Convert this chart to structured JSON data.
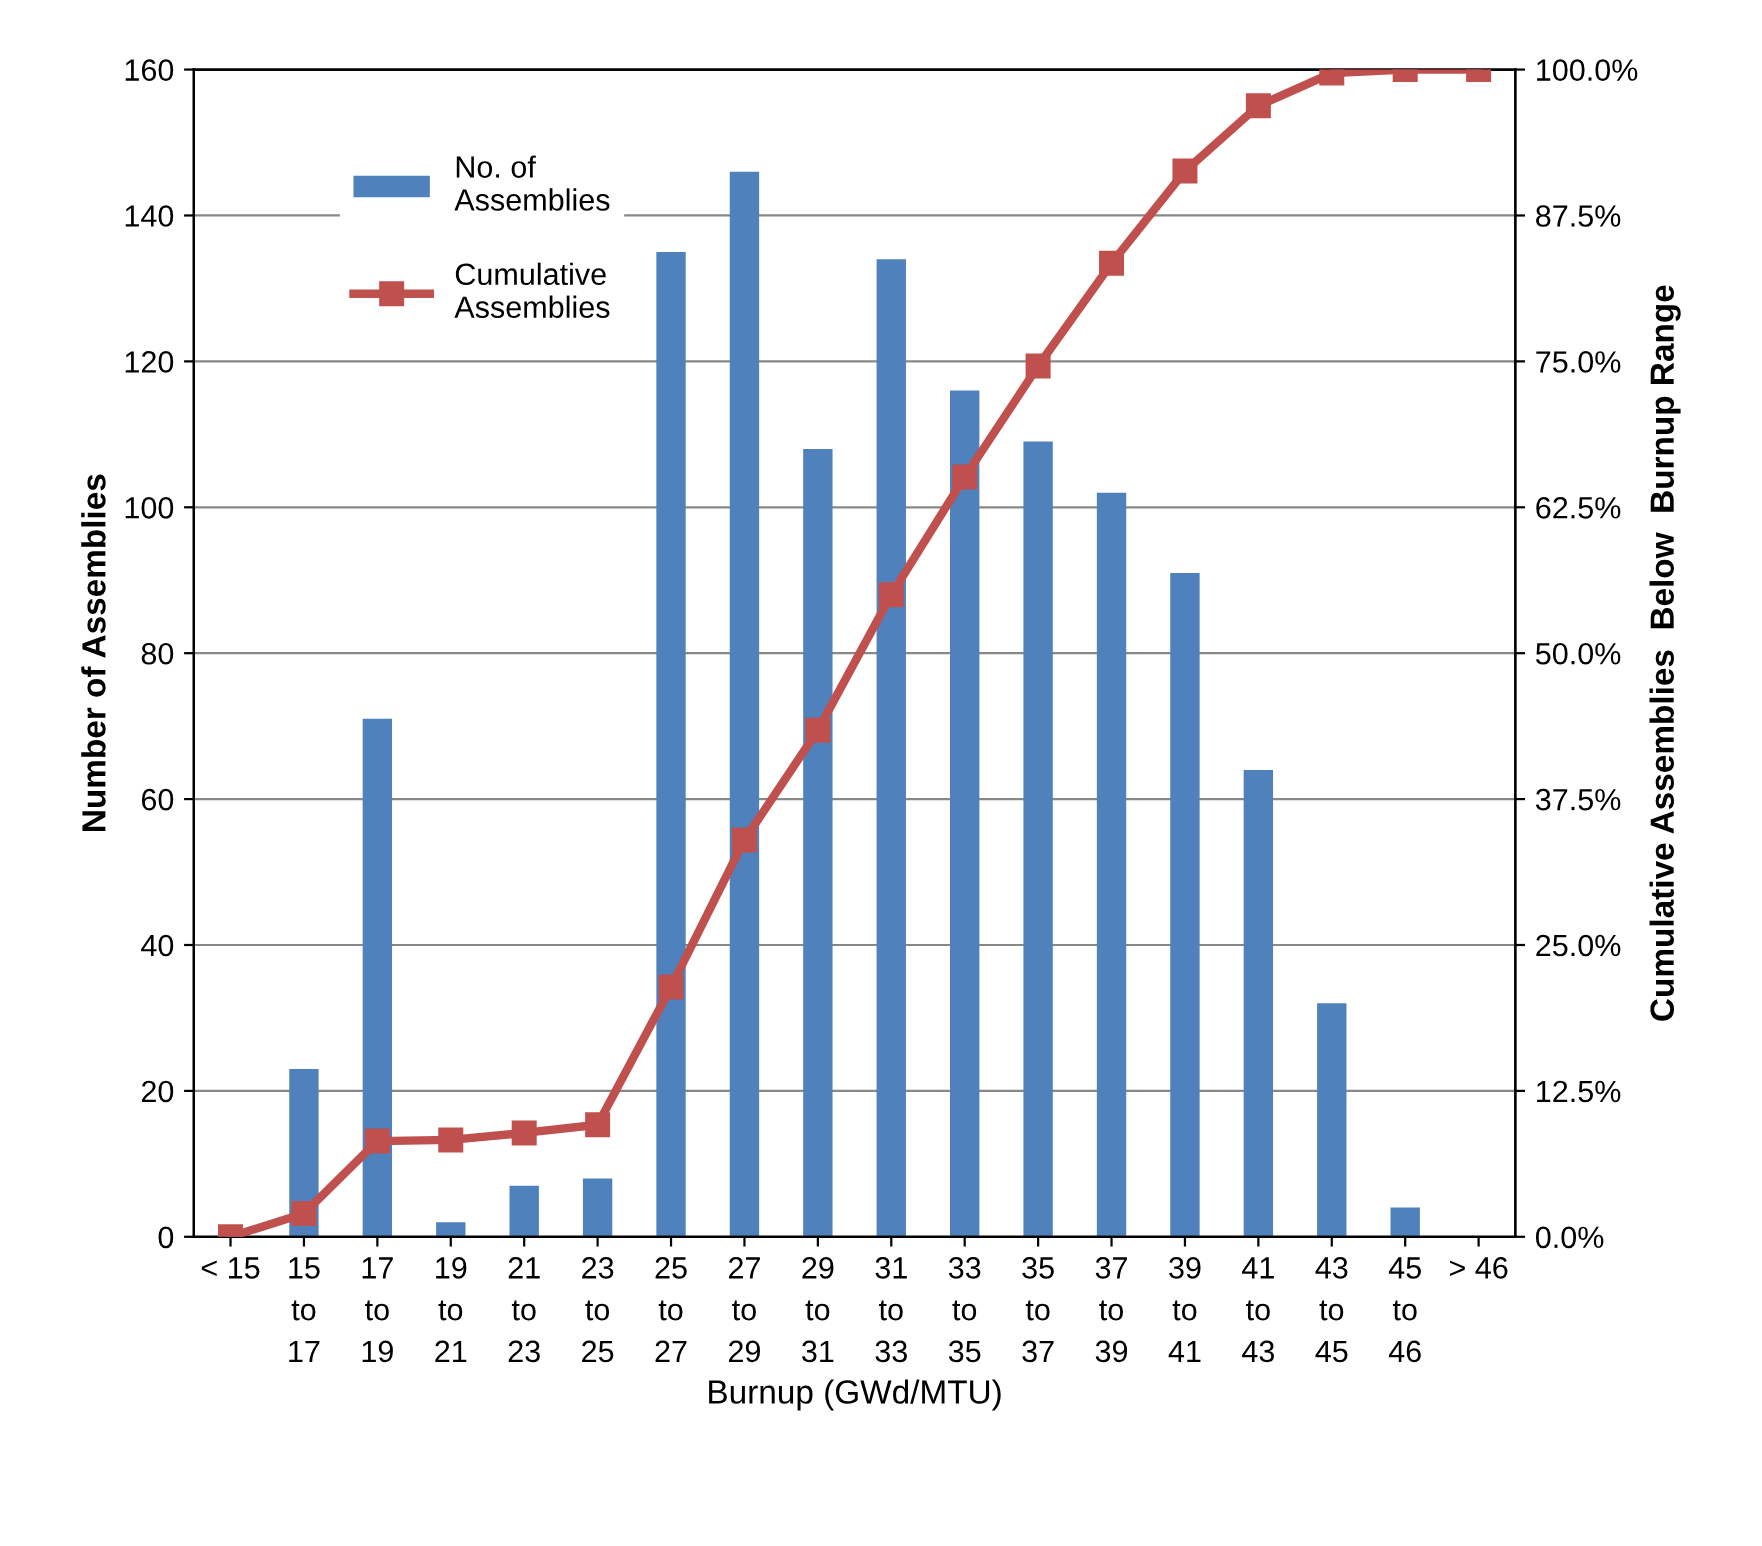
{
  "chart_data": {
    "type": "bar",
    "xlabel": "Burnup (GWd/MTU)",
    "ylabel": "Number of Assemblies",
    "y2label": "Cumulative Assemblies  Below  Burnup Range",
    "categories": [
      "< 15",
      "15\nto\n17",
      "17\nto\n19",
      "19\nto\n21",
      "21\nto\n23",
      "23\nto\n25",
      "25\nto\n27",
      "27\nto\n29",
      "29\nto\n31",
      "31\nto\n33",
      "33\nto\n35",
      "35\nto\n37",
      "37\nto\n39",
      "39\nto\n41",
      "41\nto\n43",
      "43\nto\n45",
      "45\nto\n46",
      "> 46"
    ],
    "series": [
      {
        "name": "No. of\nAssemblies",
        "color": "#4f81bd",
        "values": [
          0,
          23,
          71,
          2,
          7,
          8,
          135,
          146,
          108,
          134,
          116,
          109,
          102,
          91,
          64,
          32,
          4,
          0
        ]
      },
      {
        "name": "Cumulative\nAssemblies",
        "type": "line",
        "axis": "y2",
        "color": "#c0504d",
        "marker": "square",
        "line_style": "solid",
        "values": [
          0,
          2.0,
          8.2,
          8.3,
          8.9,
          9.6,
          21.4,
          34.0,
          43.4,
          55.0,
          65.1,
          74.6,
          83.4,
          91.3,
          96.9,
          99.7,
          100,
          100
        ]
      }
    ],
    "ylim": [
      0,
      160
    ],
    "yticks": [
      0,
      20,
      40,
      60,
      80,
      100,
      120,
      140,
      160
    ],
    "y2lim": [
      0,
      100
    ],
    "y2ticks": [
      {
        "value": 0,
        "label": "0.0%"
      },
      {
        "value": 12.5,
        "label": "12.5%"
      },
      {
        "value": 25,
        "label": "25.0%"
      },
      {
        "value": 37.5,
        "label": "37.5%"
      },
      {
        "value": 50,
        "label": "50.0%"
      },
      {
        "value": 62.5,
        "label": "62.5%"
      },
      {
        "value": 75,
        "label": "75.0%"
      },
      {
        "value": 87.5,
        "label": "87.5%"
      },
      {
        "value": 100,
        "label": "100.0%"
      }
    ],
    "grid": "y",
    "legend": "top left"
  }
}
